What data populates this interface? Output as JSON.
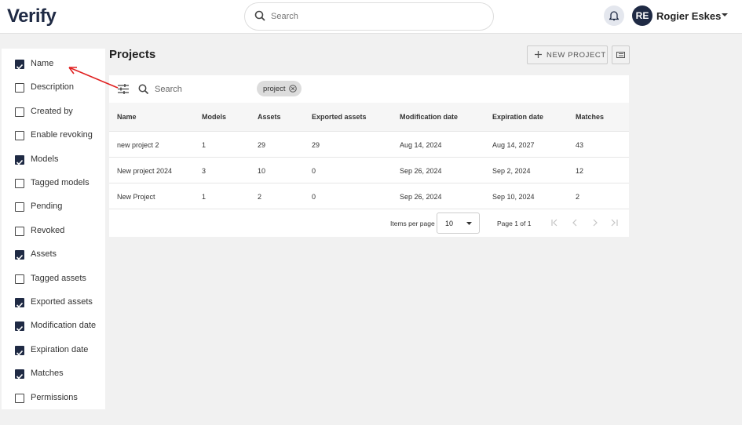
{
  "header": {
    "logo": "Verify",
    "search_placeholder": "Search",
    "user_initials": "RE",
    "user_name": "Rogier Eskes"
  },
  "column_menu": {
    "items": [
      {
        "label": "Name",
        "checked": true
      },
      {
        "label": "Description",
        "checked": false
      },
      {
        "label": "Created by",
        "checked": false
      },
      {
        "label": "Enable revoking",
        "checked": false
      },
      {
        "label": "Models",
        "checked": true
      },
      {
        "label": "Tagged models",
        "checked": false
      },
      {
        "label": "Pending",
        "checked": false
      },
      {
        "label": "Revoked",
        "checked": false
      },
      {
        "label": "Assets",
        "checked": true
      },
      {
        "label": "Tagged assets",
        "checked": false
      },
      {
        "label": "Exported assets",
        "checked": true
      },
      {
        "label": "Modification date",
        "checked": true
      },
      {
        "label": "Expiration date",
        "checked": true
      },
      {
        "label": "Matches",
        "checked": true
      },
      {
        "label": "Permissions",
        "checked": false
      }
    ]
  },
  "page": {
    "title": "Projects",
    "new_project_button": "NEW PROJECT"
  },
  "table": {
    "search_placeholder": "Search",
    "filter_chip": "project",
    "columns": [
      "Name",
      "Models",
      "Assets",
      "Exported assets",
      "Modification date",
      "Expiration date",
      "Matches"
    ],
    "rows": [
      [
        "new project 2",
        "1",
        "29",
        "29",
        "Aug 14, 2024",
        "Aug 14, 2027",
        "43"
      ],
      [
        "New project 2024",
        "3",
        "10",
        "0",
        "Sep 26, 2024",
        "Sep 2, 2024",
        "12"
      ],
      [
        "New Project",
        "1",
        "2",
        "0",
        "Sep 26, 2024",
        "Sep 10, 2024",
        "2"
      ]
    ],
    "pagination": {
      "items_per_page_label": "Items per page",
      "items_per_page": "10",
      "page_info": "Page 1 of 1"
    }
  }
}
